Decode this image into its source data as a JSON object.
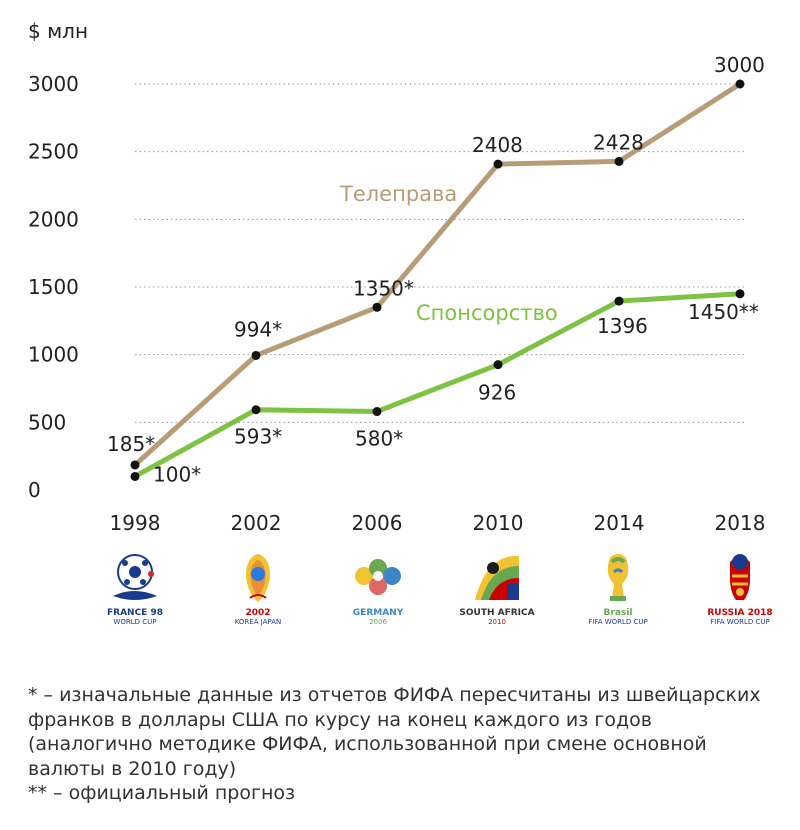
{
  "chart_data": {
    "type": "line",
    "unit_label": "$ млн",
    "x": [
      "1998",
      "2002",
      "2006",
      "2010",
      "2014",
      "2018"
    ],
    "ylim": [
      0,
      3000
    ],
    "yticks": [
      "0",
      "500",
      "1000",
      "1500",
      "2000",
      "2500",
      "3000"
    ],
    "grid": "dotted horizontal",
    "series": [
      {
        "name": "Телеправа",
        "color": "#b79c77",
        "values": [
          185,
          994,
          1350,
          2408,
          2428,
          3000
        ],
        "labels": [
          "185*",
          "994*",
          "1350*",
          "2408",
          "2428",
          "3000"
        ]
      },
      {
        "name": "Спонсорство",
        "color": "#7dc243",
        "values": [
          100,
          593,
          580,
          926,
          1396,
          1450
        ],
        "labels": [
          "100*",
          "593*",
          "580*",
          "926",
          "1396",
          "1450**"
        ]
      }
    ]
  },
  "logos": [
    {
      "icon": "france-98-logo",
      "caption": "FRANCE 98",
      "sub": "WORLD CUP"
    },
    {
      "icon": "korea-japan-2002-logo",
      "caption": "2002",
      "sub": "KOREA JAPAN"
    },
    {
      "icon": "germany-2006-logo",
      "caption": "GERMANY",
      "sub": "2006"
    },
    {
      "icon": "south-africa-2010-logo",
      "caption": "SOUTH AFRICA",
      "sub": "2010"
    },
    {
      "icon": "brasil-2014-logo",
      "caption": "Brasil",
      "sub": "FIFA WORLD CUP"
    },
    {
      "icon": "russia-2018-logo",
      "caption": "RUSSIA 2018",
      "sub": "FIFA WORLD CUP"
    }
  ],
  "footnotes": {
    "line1": "* – изначальные данные из отчетов ФИФА пересчитаны из швейцарских франков в доллары США по курсу на конец каждого из годов (аналогично методике ФИФА, использованной при смене основной валюты в 2010 году)",
    "line2": "** – официальный прогноз"
  }
}
